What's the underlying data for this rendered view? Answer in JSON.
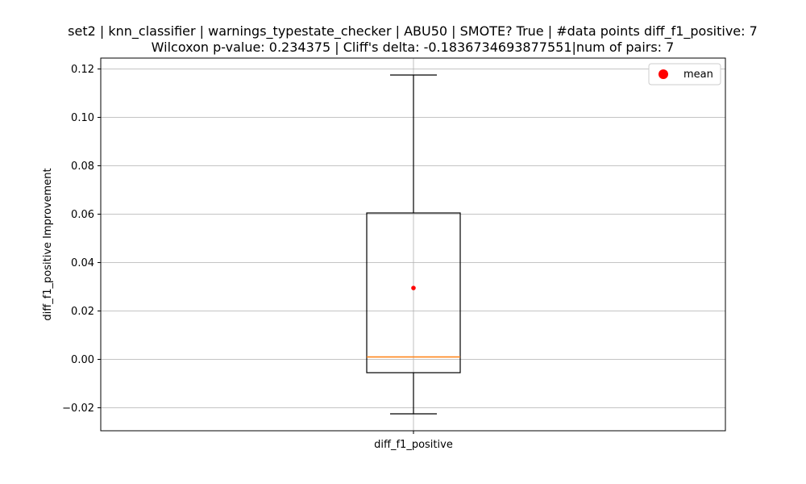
{
  "chart_data": {
    "type": "box",
    "title_line1": "set2 | knn_classifier | warnings_typestate_checker | ABU50 | SMOTE? True | #data points diff_f1_positive: 7",
    "title_line2": "Wilcoxon p-value: 0.234375 | Cliff's delta: -0.1836734693877551|num of pairs: 7",
    "xlabel": "",
    "ylabel": "diff_f1_positive Improvement",
    "categories": [
      "diff_f1_positive"
    ],
    "ylim": [
      -0.0295,
      0.1245
    ],
    "yticks": [
      -0.02,
      0.0,
      0.02,
      0.04,
      0.06,
      0.08,
      0.1,
      0.12
    ],
    "ytick_labels": [
      "−0.02",
      "0.00",
      "0.02",
      "0.04",
      "0.06",
      "0.08",
      "0.10",
      "0.12"
    ],
    "grid": true,
    "box": {
      "whisker_low": -0.0225,
      "q1": -0.0055,
      "median": 0.001,
      "q3": 0.0605,
      "whisker_high": 0.1175,
      "mean": 0.0295
    },
    "legend": {
      "placement": "top-right",
      "entries": [
        {
          "label": "mean",
          "color": "#ff0000"
        }
      ]
    },
    "colors": {
      "box": "#000000",
      "median": "#ff7f0e",
      "mean": "#ff0000",
      "grid": "#b0b0b0"
    }
  }
}
